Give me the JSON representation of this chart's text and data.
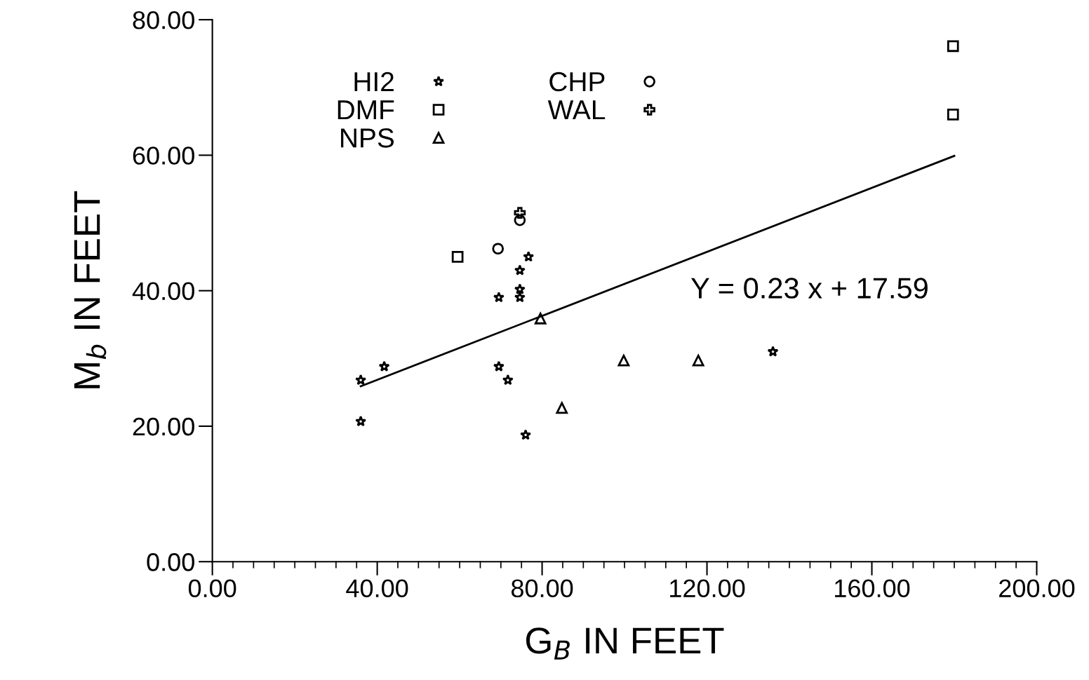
{
  "chart_data": {
    "type": "scatter",
    "xlabel": "G$_{B}$ IN FEET",
    "ylabel": "M$_{b}$ IN FEET",
    "xlim": [
      0,
      200
    ],
    "ylim": [
      0,
      80
    ],
    "xticks": [
      {
        "value": 0,
        "label": "0.00"
      },
      {
        "value": 40,
        "label": "40.00"
      },
      {
        "value": 80,
        "label": "80.00"
      },
      {
        "value": 120,
        "label": "120.00"
      },
      {
        "value": 160,
        "label": "160.00"
      },
      {
        "value": 200,
        "label": "200.00"
      }
    ],
    "yticks": [
      {
        "value": 0,
        "label": "0.00"
      },
      {
        "value": 20,
        "label": "20.00"
      },
      {
        "value": 40,
        "label": "40.00"
      },
      {
        "value": 60,
        "label": "60.00"
      },
      {
        "value": 80,
        "label": "80.00"
      }
    ],
    "legend": "top left",
    "grid": false,
    "series": [
      {
        "name": "HI2",
        "color": "#000000",
        "marker": "star",
        "x": [
          36,
          41.7,
          36,
          69.5,
          74.6,
          74.6,
          74.6,
          76.7,
          69.5,
          71.7,
          76,
          136
        ],
        "values": [
          26.8,
          28.8,
          20.7,
          39,
          43,
          40.2,
          39,
          45,
          28.8,
          26.8,
          18.7,
          31
        ]
      },
      {
        "name": "DMF",
        "color": "#000000",
        "marker": "square",
        "x": [
          59.5,
          179.7,
          179.7
        ],
        "values": [
          45,
          76.1,
          66
        ]
      },
      {
        "name": "NPS",
        "color": "#000000",
        "marker": "triangle",
        "x": [
          79.6,
          84.8,
          99.8,
          117.9
        ],
        "values": [
          35.9,
          22.7,
          29.7,
          29.7
        ]
      },
      {
        "name": "CHP",
        "color": "#000000",
        "marker": "circle",
        "x": [
          69.3,
          74.6
        ],
        "values": [
          46.2,
          50.4
        ]
      },
      {
        "name": "WAL",
        "color": "#000000",
        "marker": "cross",
        "x": [
          74.6
        ],
        "values": [
          51.5
        ]
      },
      {
        "type": "line",
        "color": "#000000",
        "x": [
          36,
          180
        ],
        "values": [
          25.9,
          59.9
        ]
      }
    ],
    "annotations": [
      "Y = 0.23 x + 17.59"
    ]
  }
}
